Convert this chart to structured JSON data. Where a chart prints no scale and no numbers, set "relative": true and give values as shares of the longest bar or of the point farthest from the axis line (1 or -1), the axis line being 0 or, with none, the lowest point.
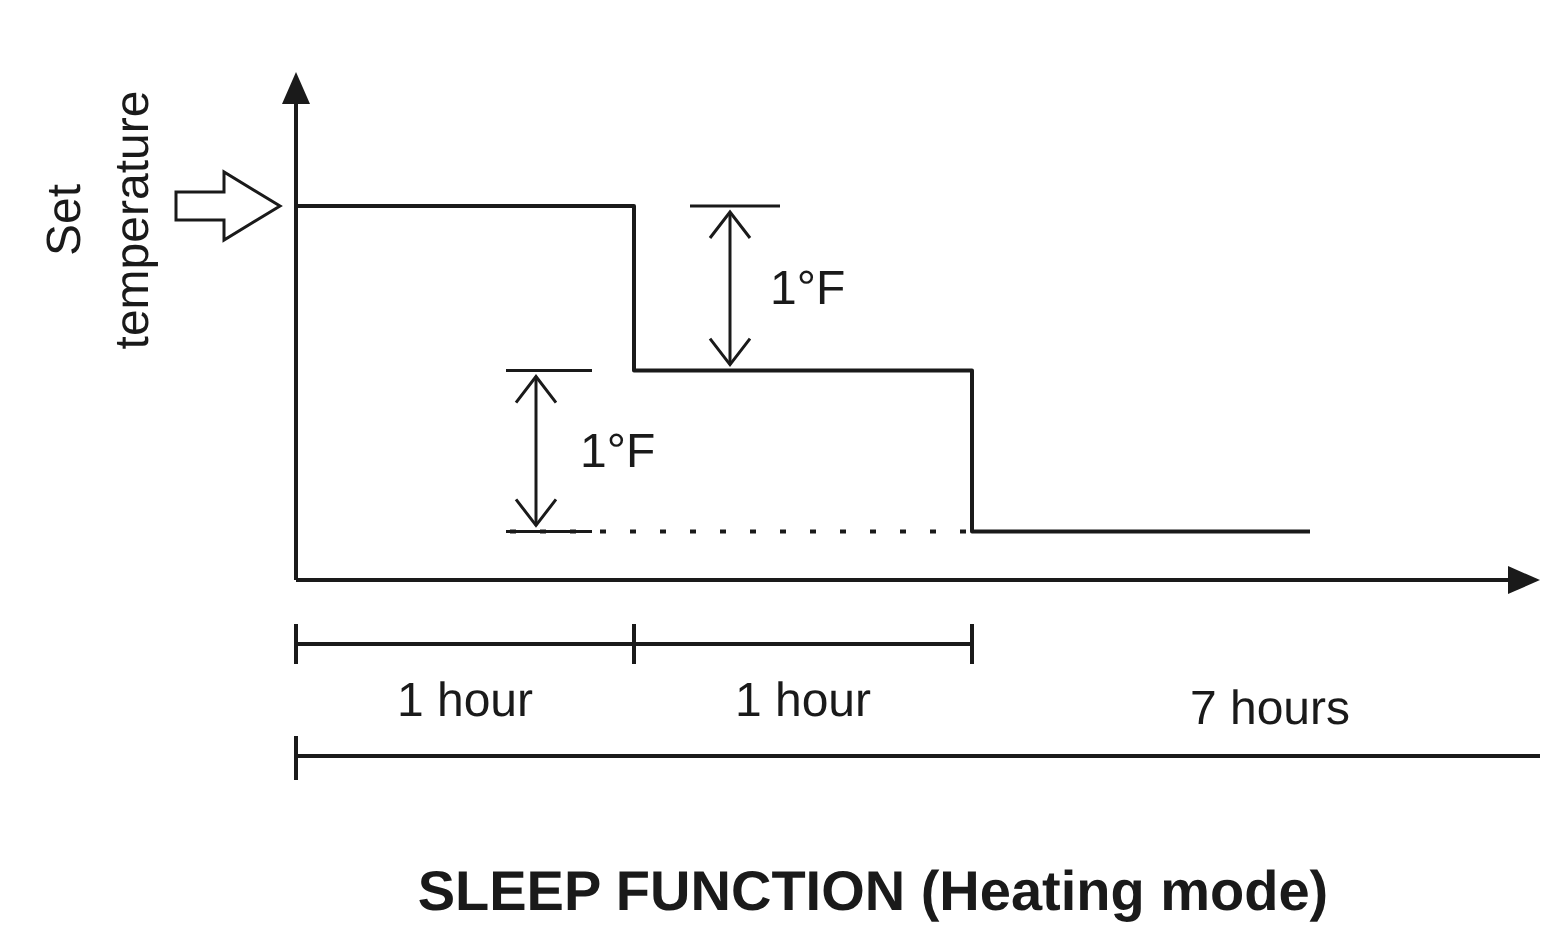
{
  "chart_data": {
    "type": "step",
    "title": "SLEEP FUNCTION (Heating mode)",
    "ylabel": "Set temperature",
    "relative": true,
    "categories": [
      null,
      null,
      null,
      null
    ],
    "series": [
      {
        "color": "#1a1a1a",
        "values": [
          1,
          0.56,
          0.13,
          0.13
        ]
      }
    ],
    "ref_lines": [
      {
        "axis": "y",
        "value": 0.13,
        "line_style": "dotted"
      }
    ],
    "annotations": [
      "1°F",
      "1°F",
      "1 hour",
      "1 hour",
      "7 hours"
    ]
  }
}
